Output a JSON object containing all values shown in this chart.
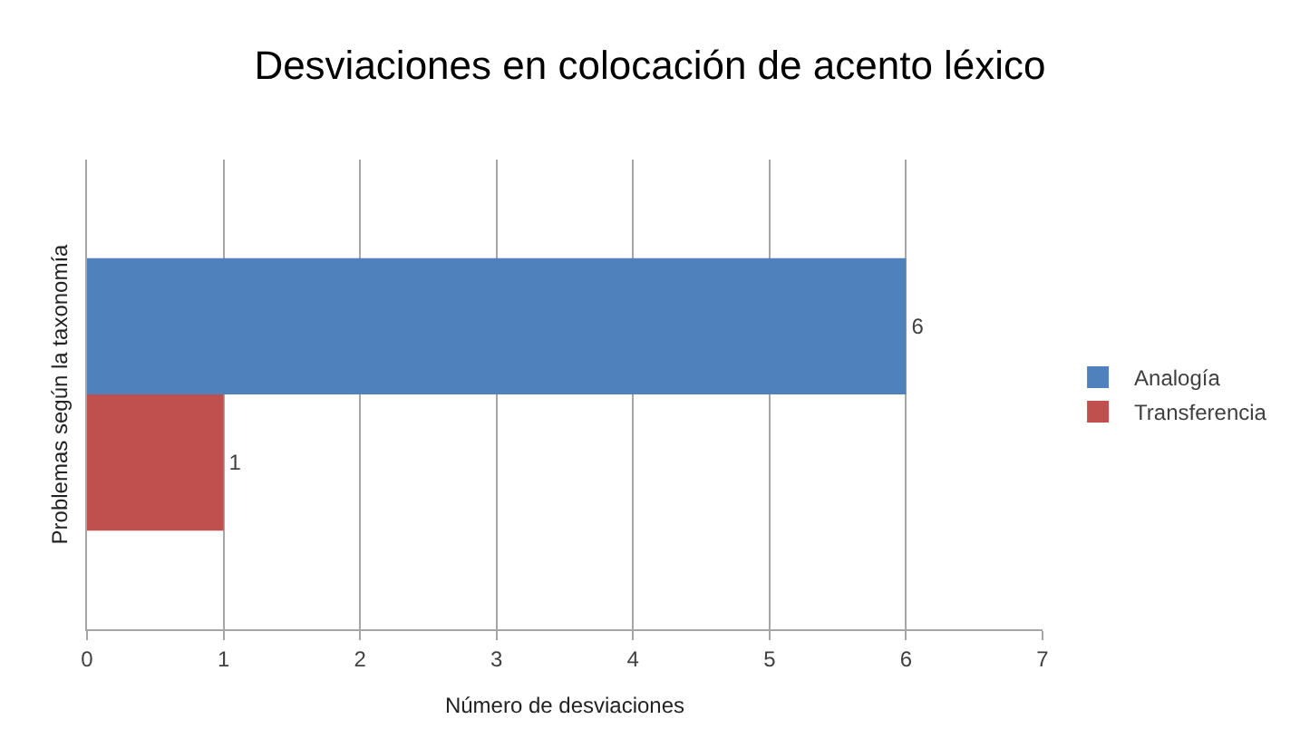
{
  "chart_data": {
    "type": "bar",
    "orientation": "horizontal",
    "title": "Desviaciones en colocación de acento léxico",
    "xlabel": "Número de desviaciones",
    "ylabel": "Problemas según la taxonomía",
    "categories": [
      null
    ],
    "series": [
      {
        "name": "Analogía",
        "color": "#4f81bd",
        "values": [
          6
        ]
      },
      {
        "name": "Transferencia",
        "color": "#c0504d",
        "values": [
          1
        ]
      }
    ],
    "xlim": [
      0,
      7
    ],
    "xticks": [
      0,
      1,
      2,
      3,
      4,
      5,
      6,
      7
    ],
    "grid": "x",
    "legend": "right",
    "data_labels": true
  }
}
